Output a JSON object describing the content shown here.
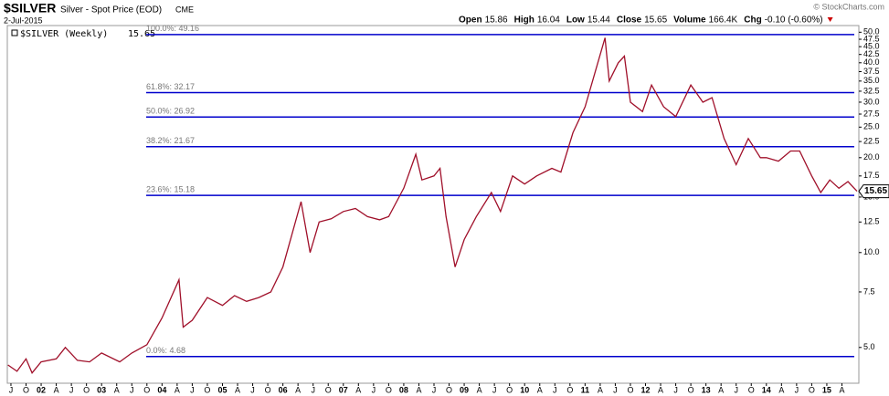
{
  "chart_data": {
    "type": "line",
    "title": "$SILVER",
    "subtitle": "Silver - Spot Price (EOD)",
    "exchange": "CME",
    "date": "2-Jul-2015",
    "watermark": "© StockCharts.com",
    "quote": [
      {
        "label": "Open",
        "value": "15.86"
      },
      {
        "label": "High",
        "value": "16.04"
      },
      {
        "label": "Low",
        "value": "15.44"
      },
      {
        "label": "Close",
        "value": "15.65"
      },
      {
        "label": "Volume",
        "value": "166.4K"
      },
      {
        "label": "Chg",
        "value": "-0.10 (-0.60%)"
      }
    ],
    "log_scale": true,
    "xlim": [
      2001.44,
      2015.53
    ],
    "ylim": [
      3.85,
      52.5
    ],
    "yticks": [
      {
        "value": 5,
        "label": "5.0"
      },
      {
        "value": 7.5,
        "label": "7.5"
      },
      {
        "value": 10,
        "label": "10.0"
      },
      {
        "value": 12.5,
        "label": "12.5"
      },
      {
        "value": 15,
        "label": "15.0"
      },
      {
        "value": 17.5,
        "label": "17.5"
      },
      {
        "value": 20,
        "label": "20.0"
      },
      {
        "value": 22.5,
        "label": "22.5"
      },
      {
        "value": 25,
        "label": "25.0"
      },
      {
        "value": 27.5,
        "label": "27.5"
      },
      {
        "value": 30,
        "label": "30.0"
      },
      {
        "value": 32.5,
        "label": "32.5"
      },
      {
        "value": 35,
        "label": "35.0"
      },
      {
        "value": 37.5,
        "label": "37.5"
      },
      {
        "value": 40,
        "label": "40.0"
      },
      {
        "value": 42.5,
        "label": "42.5"
      },
      {
        "value": 45,
        "label": "45.0"
      },
      {
        "value": 47.5,
        "label": "47.5"
      },
      {
        "value": 50,
        "label": "50.0"
      }
    ],
    "xticks": [
      {
        "value": 2001.5,
        "label": "J"
      },
      {
        "value": 2001.75,
        "label": "O"
      },
      {
        "value": 2002,
        "label": "02"
      },
      {
        "value": 2002.25,
        "label": "A"
      },
      {
        "value": 2002.5,
        "label": "J"
      },
      {
        "value": 2002.75,
        "label": "O"
      },
      {
        "value": 2003,
        "label": "03"
      },
      {
        "value": 2003.25,
        "label": "A"
      },
      {
        "value": 2003.5,
        "label": "J"
      },
      {
        "value": 2003.75,
        "label": "O"
      },
      {
        "value": 2004,
        "label": "04"
      },
      {
        "value": 2004.25,
        "label": "A"
      },
      {
        "value": 2004.5,
        "label": "J"
      },
      {
        "value": 2004.75,
        "label": "O"
      },
      {
        "value": 2005,
        "label": "05"
      },
      {
        "value": 2005.25,
        "label": "A"
      },
      {
        "value": 2005.5,
        "label": "J"
      },
      {
        "value": 2005.75,
        "label": "O"
      },
      {
        "value": 2006,
        "label": "06"
      },
      {
        "value": 2006.25,
        "label": "A"
      },
      {
        "value": 2006.5,
        "label": "J"
      },
      {
        "value": 2006.75,
        "label": "O"
      },
      {
        "value": 2007,
        "label": "07"
      },
      {
        "value": 2007.25,
        "label": "A"
      },
      {
        "value": 2007.5,
        "label": "J"
      },
      {
        "value": 2007.75,
        "label": "O"
      },
      {
        "value": 2008,
        "label": "08"
      },
      {
        "value": 2008.25,
        "label": "A"
      },
      {
        "value": 2008.5,
        "label": "J"
      },
      {
        "value": 2008.75,
        "label": "O"
      },
      {
        "value": 2009,
        "label": "09"
      },
      {
        "value": 2009.25,
        "label": "A"
      },
      {
        "value": 2009.5,
        "label": "J"
      },
      {
        "value": 2009.75,
        "label": "O"
      },
      {
        "value": 2010,
        "label": "10"
      },
      {
        "value": 2010.25,
        "label": "A"
      },
      {
        "value": 2010.5,
        "label": "J"
      },
      {
        "value": 2010.75,
        "label": "O"
      },
      {
        "value": 2011,
        "label": "11"
      },
      {
        "value": 2011.25,
        "label": "A"
      },
      {
        "value": 2011.5,
        "label": "J"
      },
      {
        "value": 2011.75,
        "label": "O"
      },
      {
        "value": 2012,
        "label": "12"
      },
      {
        "value": 2012.25,
        "label": "A"
      },
      {
        "value": 2012.5,
        "label": "J"
      },
      {
        "value": 2012.75,
        "label": "O"
      },
      {
        "value": 2013,
        "label": "13"
      },
      {
        "value": 2013.25,
        "label": "A"
      },
      {
        "value": 2013.5,
        "label": "J"
      },
      {
        "value": 2013.75,
        "label": "O"
      },
      {
        "value": 2014,
        "label": "14"
      },
      {
        "value": 2014.25,
        "label": "A"
      },
      {
        "value": 2014.5,
        "label": "J"
      },
      {
        "value": 2014.75,
        "label": "O"
      },
      {
        "value": 2015,
        "label": "15"
      },
      {
        "value": 2015.25,
        "label": "A"
      }
    ],
    "fib_color": "#0000cc",
    "fib_levels": [
      {
        "label": "100.0%: 49.16",
        "value": 49.16
      },
      {
        "label": "61.8%: 32.17",
        "value": 32.17
      },
      {
        "label": "50.0%: 26.92",
        "value": 26.92
      },
      {
        "label": "38.2%: 21.67",
        "value": 21.67
      },
      {
        "label": "23.6%: 15.18",
        "value": 15.18
      },
      {
        "label": "0.0%: 4.68",
        "value": 4.68
      }
    ],
    "x": [
      2001.45,
      2001.6,
      2001.75,
      2001.85,
      2002.0,
      2002.25,
      2002.4,
      2002.6,
      2002.8,
      2003.0,
      2003.3,
      2003.5,
      2003.75,
      2004.0,
      2004.28,
      2004.35,
      2004.5,
      2004.75,
      2005.0,
      2005.2,
      2005.4,
      2005.6,
      2005.8,
      2006.0,
      2006.3,
      2006.45,
      2006.6,
      2006.8,
      2007.0,
      2007.2,
      2007.4,
      2007.6,
      2007.75,
      2008.0,
      2008.2,
      2008.3,
      2008.5,
      2008.6,
      2008.7,
      2008.85,
      2009.0,
      2009.2,
      2009.45,
      2009.6,
      2009.8,
      2010.0,
      2010.2,
      2010.45,
      2010.6,
      2010.8,
      2011.0,
      2011.33,
      2011.4,
      2011.55,
      2011.65,
      2011.75,
      2011.95,
      2012.1,
      2012.3,
      2012.5,
      2012.75,
      2012.95,
      2013.1,
      2013.3,
      2013.5,
      2013.7,
      2013.9,
      2014.0,
      2014.2,
      2014.4,
      2014.55,
      2014.75,
      2014.9,
      2015.05,
      2015.2,
      2015.35,
      2015.5
    ],
    "series": [
      {
        "name": "$SILVER (Weekly)",
        "color": "#a0102a",
        "values": [
          4.4,
          4.2,
          4.6,
          4.15,
          4.5,
          4.6,
          5.0,
          4.55,
          4.5,
          4.8,
          4.5,
          4.8,
          5.1,
          6.2,
          8.2,
          5.8,
          6.1,
          7.2,
          6.8,
          7.3,
          7.0,
          7.2,
          7.5,
          9.0,
          14.5,
          10.0,
          12.5,
          12.8,
          13.5,
          13.8,
          13.0,
          12.7,
          13.0,
          16.0,
          20.5,
          17.0,
          17.5,
          18.5,
          13.0,
          9.0,
          11.0,
          13.0,
          15.5,
          13.5,
          17.5,
          16.5,
          17.5,
          18.5,
          18.0,
          24.0,
          29.0,
          48.0,
          35.0,
          40.0,
          42.0,
          30.0,
          28.0,
          34.0,
          29.0,
          27.0,
          34.0,
          30.0,
          31.0,
          23.0,
          19.0,
          23.0,
          20.0,
          20.0,
          19.5,
          21.0,
          21.0,
          17.5,
          15.5,
          17.0,
          16.0,
          16.8,
          15.65
        ]
      }
    ]
  }
}
